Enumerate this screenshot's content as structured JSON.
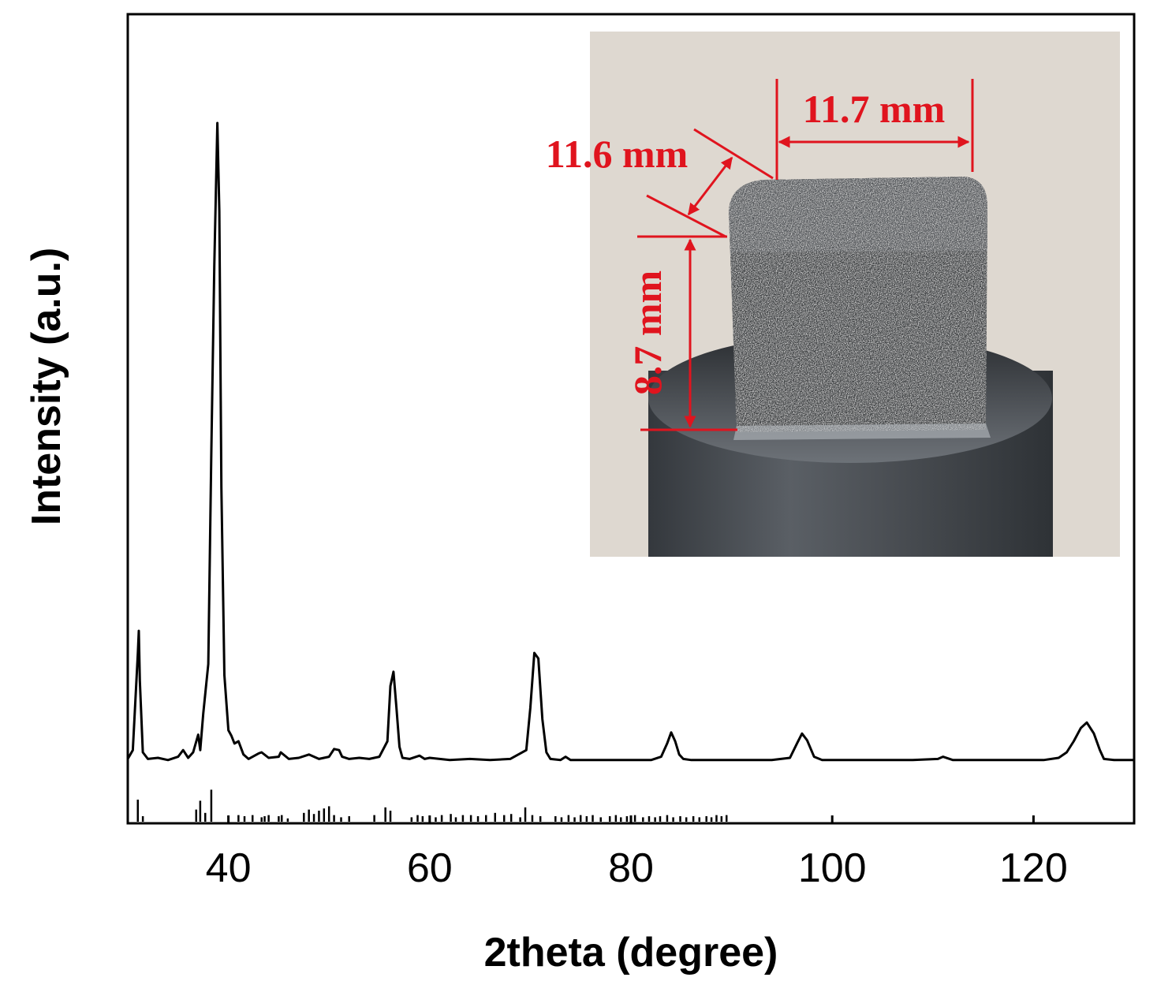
{
  "chart_data": {
    "type": "line",
    "xlabel": "2theta (degree)",
    "ylabel": "Intensity (a.u.)",
    "xlim": [
      30,
      130
    ],
    "x_ticks": [
      40,
      60,
      80,
      100,
      120
    ],
    "y_ticks_labeled": false,
    "grid": false,
    "legend": "none",
    "line_color": "#000000",
    "series": [
      {
        "x": [
          30,
          30.5,
          31.0,
          31.1,
          31.2,
          31.5,
          32,
          33,
          34,
          35,
          35.5,
          36,
          36.5,
          37,
          37.2,
          37.5,
          38,
          38.3,
          38.6,
          38.9,
          39.1,
          39.3,
          39.6,
          40,
          40.3,
          40.6,
          41,
          41.5,
          42,
          43,
          43.3,
          44,
          45,
          45.2,
          46,
          47,
          48,
          49,
          50,
          50.5,
          51,
          51.3,
          52,
          53,
          54,
          55,
          55.8,
          56.1,
          56.4,
          56.7,
          57,
          57.3,
          58,
          59,
          59.5,
          60,
          62,
          64,
          66,
          68,
          69.6,
          70,
          70.4,
          70.8,
          71.2,
          71.6,
          72,
          73,
          73.5,
          74,
          76,
          78,
          80,
          82,
          83,
          83.6,
          84,
          84.4,
          84.8,
          85.2,
          86,
          88,
          90,
          92,
          94,
          95.8,
          96.5,
          97,
          97.5,
          98.2,
          99,
          102,
          105,
          108,
          110.5,
          111,
          112,
          115,
          118,
          121,
          122.5,
          123.3,
          124,
          124.7,
          125.3,
          126,
          126.6,
          127,
          128,
          130
        ],
        "y": [
          0.4,
          1.2,
          10.0,
          12.0,
          7.5,
          1.0,
          0.4,
          0.5,
          0.3,
          0.6,
          1.2,
          0.5,
          1.0,
          2.6,
          1.2,
          4.5,
          9.0,
          28.0,
          45.0,
          58.0,
          50.0,
          25.0,
          8.0,
          3.0,
          2.5,
          1.8,
          2.0,
          0.8,
          0.4,
          0.9,
          1.0,
          0.5,
          0.6,
          1.0,
          0.4,
          0.5,
          0.8,
          0.4,
          0.6,
          1.3,
          1.2,
          0.6,
          0.4,
          0.5,
          0.4,
          0.6,
          2.0,
          7.0,
          8.3,
          5.0,
          1.5,
          0.5,
          0.4,
          0.7,
          0.4,
          0.5,
          0.3,
          0.4,
          0.3,
          0.4,
          1.2,
          5.0,
          10.0,
          9.5,
          4.0,
          1.0,
          0.4,
          0.3,
          0.6,
          0.3,
          0.3,
          0.3,
          0.3,
          0.3,
          0.6,
          1.8,
          2.8,
          2.0,
          0.8,
          0.4,
          0.3,
          0.3,
          0.3,
          0.3,
          0.3,
          0.5,
          1.8,
          2.7,
          2.1,
          0.6,
          0.3,
          0.3,
          0.3,
          0.3,
          0.4,
          0.6,
          0.3,
          0.3,
          0.3,
          0.3,
          0.5,
          1.0,
          2.0,
          3.2,
          3.7,
          2.7,
          1.2,
          0.4,
          0.3,
          0.3
        ]
      }
    ],
    "reference_sticks": {
      "x": [
        31.0,
        31.5,
        36.8,
        37.2,
        37.7,
        38.3,
        41.0,
        41.6,
        42.4,
        43.3,
        43.6,
        44.0,
        45.0,
        45.3,
        45.9,
        47.5,
        48.0,
        48.5,
        49.0,
        49.5,
        50.0,
        50.5,
        51.2,
        52.0,
        54.5,
        55.6,
        56.1,
        58.2,
        58.8,
        59.3,
        60.0,
        60.6,
        61.2,
        62.1,
        62.6,
        63.3,
        64.1,
        64.8,
        65.6,
        66.5,
        67.4,
        68.1,
        69.0,
        69.5,
        70.2,
        71.0,
        72.5,
        73.1,
        73.8,
        74.4,
        75.0,
        75.6,
        76.2,
        77.0,
        77.9,
        78.5,
        79.0,
        79.6,
        80.4,
        81.2,
        81.8,
        82.4,
        82.9,
        83.6,
        84.2,
        84.9,
        85.5,
        86.2,
        86.8,
        87.5,
        88.0,
        88.5,
        89.0,
        89.5
      ],
      "h": [
        1.0,
        0.25,
        0.55,
        0.95,
        0.4,
        1.45,
        0.3,
        0.25,
        0.3,
        0.2,
        0.25,
        0.3,
        0.25,
        0.3,
        0.15,
        0.4,
        0.55,
        0.35,
        0.5,
        0.6,
        0.7,
        0.3,
        0.2,
        0.25,
        0.3,
        0.65,
        0.5,
        0.2,
        0.3,
        0.25,
        0.25,
        0.2,
        0.3,
        0.35,
        0.2,
        0.3,
        0.3,
        0.25,
        0.3,
        0.4,
        0.3,
        0.35,
        0.2,
        0.65,
        0.3,
        0.25,
        0.25,
        0.2,
        0.3,
        0.2,
        0.3,
        0.25,
        0.3,
        0.2,
        0.25,
        0.3,
        0.2,
        0.25,
        0.3,
        0.2,
        0.25,
        0.2,
        0.25,
        0.3,
        0.2,
        0.25,
        0.2,
        0.25,
        0.2,
        0.25,
        0.2,
        0.3,
        0.25,
        0.3
      ]
    }
  },
  "inset_photo": {
    "labels": {
      "width": "11.7 mm",
      "depth": "11.6 mm",
      "height": "8.7 mm"
    },
    "annotation_color": "#e0141e",
    "background_color": "#ded8d0"
  }
}
